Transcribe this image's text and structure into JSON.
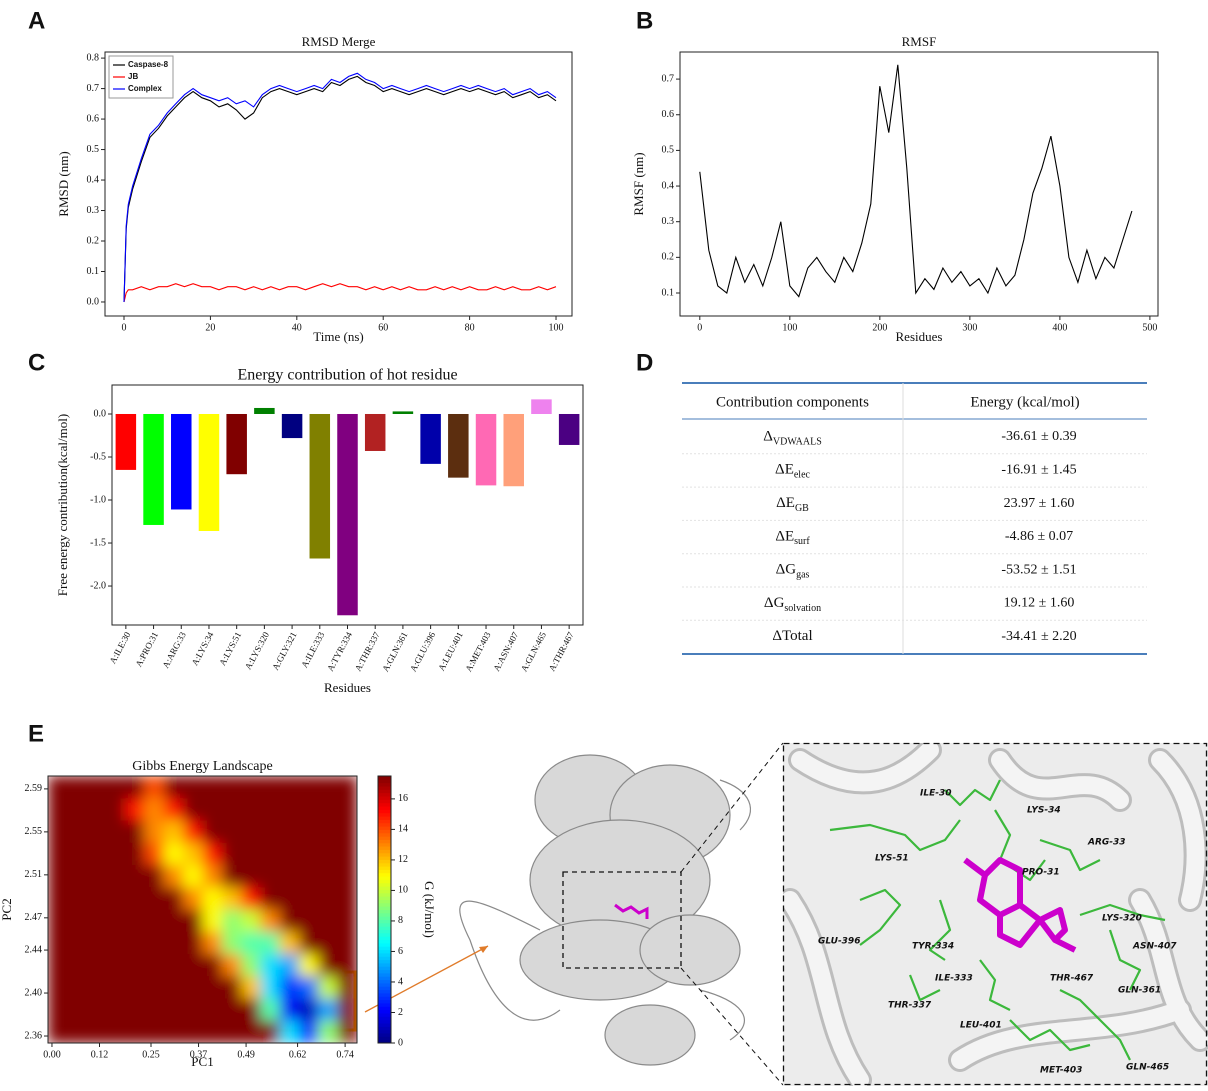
{
  "panels": [
    "A",
    "B",
    "C",
    "D",
    "E"
  ],
  "chart_data": [
    {
      "type": "line",
      "title": "RMSD Merge",
      "xlabel": "Time (ns)",
      "ylabel": "RMSD (nm)",
      "x": [
        0,
        0.5,
        1,
        2,
        4,
        6,
        8,
        10,
        12,
        14,
        16,
        18,
        20,
        22,
        24,
        26,
        28,
        30,
        32,
        34,
        36,
        38,
        40,
        42,
        44,
        46,
        48,
        50,
        52,
        54,
        56,
        58,
        60,
        62,
        64,
        66,
        68,
        70,
        72,
        74,
        76,
        78,
        80,
        82,
        84,
        86,
        88,
        90,
        92,
        94,
        96,
        98,
        100
      ],
      "series": [
        {
          "name": "Caspase-8",
          "color": "#000000",
          "values": [
            0.0,
            0.24,
            0.31,
            0.37,
            0.46,
            0.54,
            0.57,
            0.61,
            0.64,
            0.67,
            0.69,
            0.67,
            0.66,
            0.64,
            0.65,
            0.63,
            0.6,
            0.62,
            0.67,
            0.69,
            0.7,
            0.69,
            0.68,
            0.69,
            0.7,
            0.69,
            0.72,
            0.71,
            0.73,
            0.74,
            0.72,
            0.71,
            0.69,
            0.7,
            0.69,
            0.68,
            0.69,
            0.7,
            0.69,
            0.68,
            0.69,
            0.7,
            0.69,
            0.7,
            0.69,
            0.68,
            0.69,
            0.67,
            0.68,
            0.69,
            0.67,
            0.68,
            0.66
          ]
        },
        {
          "name": "JB",
          "color": "#ff0000",
          "values": [
            0.0,
            0.03,
            0.04,
            0.04,
            0.05,
            0.04,
            0.05,
            0.05,
            0.06,
            0.05,
            0.06,
            0.05,
            0.05,
            0.04,
            0.05,
            0.05,
            0.04,
            0.05,
            0.04,
            0.05,
            0.04,
            0.05,
            0.05,
            0.04,
            0.05,
            0.06,
            0.05,
            0.06,
            0.05,
            0.05,
            0.04,
            0.05,
            0.04,
            0.05,
            0.04,
            0.05,
            0.04,
            0.04,
            0.05,
            0.04,
            0.05,
            0.04,
            0.05,
            0.04,
            0.04,
            0.05,
            0.04,
            0.05,
            0.04,
            0.04,
            0.05,
            0.04,
            0.05
          ]
        },
        {
          "name": "Complex",
          "color": "#0000ff",
          "values": [
            0.0,
            0.25,
            0.32,
            0.38,
            0.47,
            0.55,
            0.58,
            0.62,
            0.65,
            0.68,
            0.7,
            0.68,
            0.67,
            0.66,
            0.67,
            0.65,
            0.66,
            0.64,
            0.68,
            0.7,
            0.71,
            0.7,
            0.69,
            0.7,
            0.71,
            0.7,
            0.73,
            0.72,
            0.74,
            0.75,
            0.73,
            0.72,
            0.7,
            0.71,
            0.7,
            0.69,
            0.7,
            0.71,
            0.7,
            0.69,
            0.7,
            0.71,
            0.7,
            0.71,
            0.7,
            0.69,
            0.7,
            0.68,
            0.69,
            0.7,
            0.68,
            0.69,
            0.67
          ]
        }
      ],
      "legend": "upper left",
      "xlim": [
        -4.4,
        103.7
      ],
      "xticks": [
        0,
        20,
        40,
        60,
        80,
        100
      ],
      "ylim": [
        -0.046,
        0.82
      ],
      "yticks": [
        {
          "value": 0,
          "label": "0.0"
        },
        0.1,
        0.2,
        0.3,
        0.4,
        0.5,
        0.6,
        0.7,
        0.8
      ]
    },
    {
      "type": "line",
      "title": "RMSF",
      "xlabel": "Residues",
      "ylabel": "RMSF (nm)",
      "color": "#000000",
      "x": [
        0,
        10,
        20,
        30,
        40,
        50,
        60,
        70,
        80,
        90,
        100,
        110,
        120,
        130,
        140,
        150,
        160,
        170,
        180,
        190,
        200,
        210,
        220,
        230,
        240,
        250,
        260,
        270,
        280,
        290,
        300,
        310,
        320,
        330,
        340,
        350,
        360,
        370,
        380,
        390,
        400,
        410,
        420,
        430,
        440,
        450,
        460,
        470,
        480
      ],
      "values": [
        0.44,
        0.22,
        0.12,
        0.1,
        0.2,
        0.13,
        0.18,
        0.12,
        0.2,
        0.3,
        0.12,
        0.09,
        0.17,
        0.2,
        0.16,
        0.13,
        0.2,
        0.16,
        0.24,
        0.35,
        0.68,
        0.55,
        0.74,
        0.45,
        0.1,
        0.14,
        0.11,
        0.17,
        0.13,
        0.16,
        0.12,
        0.14,
        0.1,
        0.17,
        0.12,
        0.15,
        0.25,
        0.38,
        0.45,
        0.54,
        0.4,
        0.2,
        0.13,
        0.22,
        0.14,
        0.2,
        0.17,
        0.25,
        0.33
      ],
      "xlim": [
        -22,
        509
      ],
      "xticks": [
        0,
        100,
        200,
        300,
        400,
        500
      ],
      "ylim": [
        0.0355,
        0.776
      ],
      "yticks": [
        0.1,
        0.2,
        0.3,
        0.4,
        0.5,
        0.6,
        0.7
      ]
    },
    {
      "type": "bar",
      "title": "Energy contribution of hot residue",
      "xlabel": "Residues",
      "ylabel": "Free energy contribution(kcal/mol)",
      "categories": [
        "A:ILE:30",
        "A:PRO:31",
        "A:ARG:33",
        "A:LYS:34",
        "A:LYS:51",
        "A:LYS:320",
        "A:GLY:321",
        "A:ILE:333",
        "A:TYR:334",
        "A:THR:337",
        "A:GLN:361",
        "A:GLU:396",
        "A:LEU:401",
        "A:MET:403",
        "A:ASN:407",
        "A:GLN:465",
        "A:THR:467"
      ],
      "values": [
        -0.65,
        -1.29,
        -1.11,
        -1.36,
        -0.7,
        0.07,
        -0.28,
        -1.68,
        -2.34,
        -0.43,
        0.03,
        -0.58,
        -0.74,
        -0.83,
        -0.84,
        0.17,
        -0.36
      ],
      "colors": [
        "#ff0000",
        "#00ff00",
        "#0000ff",
        "#ffff00",
        "#800000",
        "#008000",
        "#000080",
        "#808000",
        "#800080",
        "#b22222",
        "#008000",
        "#0000aa",
        "#5c2e0f",
        "#ff69b4",
        "#ffa07a",
        "#ee82ee",
        "#4b0082"
      ],
      "ylim": [
        -2.453,
        0.337
      ],
      "yticks": [
        {
          "value": 0,
          "label": "0.0"
        },
        -0.5,
        {
          "value": -1,
          "label": "-1.0"
        },
        -1.5,
        {
          "value": -2,
          "label": "-2.0"
        }
      ]
    },
    {
      "type": "heatmap",
      "title": "Gibbs Energy Landscape",
      "xlabel": "PC1",
      "ylabel": "PC2",
      "colorbar_label": "G (kJ/mol)",
      "xlim": [
        -0.01,
        0.77
      ],
      "xticks": [
        {
          "value": 0,
          "label": "0.00"
        },
        0.12,
        0.25,
        0.37,
        0.49,
        0.62,
        0.74
      ],
      "ylim": [
        2.3535,
        2.602
      ],
      "yticks": [
        2.36,
        {
          "value": 2.4,
          "label": "2.40"
        },
        2.44,
        2.47,
        2.51,
        2.55,
        2.59
      ],
      "clim": [
        0,
        17.5
      ],
      "cticks": [
        0,
        2,
        4,
        6,
        8,
        10,
        12,
        14,
        16
      ],
      "colormap": "jet",
      "z": [
        [
          17.5,
          17.5,
          17.5,
          17.5,
          17.5,
          14,
          17.5,
          17.5,
          17.5,
          17.5,
          17.5,
          17.5,
          17.5,
          17.5,
          17.5,
          17.5
        ],
        [
          17.5,
          17.5,
          17.5,
          17.5,
          15,
          13,
          15,
          17.5,
          17.5,
          17.5,
          17.5,
          17.5,
          17.5,
          17.5,
          17.5,
          17.5
        ],
        [
          17.5,
          17.5,
          17.5,
          17.5,
          17.5,
          13,
          12,
          15,
          17.5,
          17.5,
          17.5,
          17.5,
          17.5,
          17.5,
          17.5,
          17.5
        ],
        [
          17.5,
          17.5,
          17.5,
          17.5,
          17.5,
          14,
          11,
          12,
          15,
          17.5,
          17.5,
          17.5,
          17.5,
          17.5,
          17.5,
          17.5
        ],
        [
          17.5,
          17.5,
          17.5,
          17.5,
          17.5,
          17.5,
          13,
          11,
          13,
          17.5,
          17.5,
          17.5,
          17.5,
          17.5,
          17.5,
          17.5
        ],
        [
          17.5,
          17.5,
          17.5,
          17.5,
          17.5,
          17.5,
          17.5,
          13,
          11,
          12,
          15,
          17.5,
          17.5,
          17.5,
          17.5,
          17.5
        ],
        [
          17.5,
          17.5,
          17.5,
          17.5,
          17.5,
          17.5,
          17.5,
          17.5,
          11,
          9,
          10,
          13,
          17.5,
          17.5,
          17.5,
          17.5
        ],
        [
          17.5,
          17.5,
          17.5,
          17.5,
          17.5,
          17.5,
          17.5,
          17.5,
          13,
          9,
          8,
          8,
          12,
          17.5,
          17.5,
          17.5
        ],
        [
          17.5,
          17.5,
          17.5,
          17.5,
          17.5,
          17.5,
          17.5,
          17.5,
          17.5,
          13,
          9,
          6,
          5,
          11,
          17.5,
          17.5
        ],
        [
          17.5,
          17.5,
          17.5,
          17.5,
          17.5,
          17.5,
          17.5,
          17.5,
          17.5,
          17.5,
          12,
          6,
          3,
          4,
          10,
          17.5
        ],
        [
          17.5,
          17.5,
          17.5,
          17.5,
          17.5,
          17.5,
          17.5,
          17.5,
          17.5,
          17.5,
          17.5,
          8,
          2,
          1,
          5,
          17.5
        ],
        [
          17.5,
          17.5,
          17.5,
          17.5,
          17.5,
          17.5,
          17.5,
          17.5,
          17.5,
          17.5,
          17.5,
          17.5,
          6,
          3,
          9,
          17.5
        ]
      ]
    }
  ],
  "table": {
    "header": [
      "Contribution components",
      "Energy (kcal/mol)"
    ],
    "rows": [
      [
        {
          "main": "Δ",
          "sub": "VDWAALS"
        },
        "-36.61 ± 0.39"
      ],
      [
        {
          "main": "ΔE",
          "sub": "elec"
        },
        "-16.91 ± 1.45"
      ],
      [
        {
          "main": "ΔE",
          "sub": "GB"
        },
        "23.97 ± 1.60"
      ],
      [
        {
          "main": "ΔE",
          "sub": "surf"
        },
        "-4.86 ± 0.07"
      ],
      [
        {
          "main": "ΔG",
          "sub": "gas"
        },
        "-53.52 ± 1.51"
      ],
      [
        {
          "main": "ΔG",
          "sub": "solvation"
        },
        "19.12 ± 1.60"
      ],
      [
        {
          "main": "ΔTotal"
        },
        "-34.41 ± 2.20"
      ]
    ]
  },
  "structure_labels": [
    "ILE-30",
    "LYS-34",
    "ARG-33",
    "LYS-51",
    "PRO-31",
    "LYS-320",
    "ASN-407",
    "GLU-396",
    "TYR-334",
    "ILE-333",
    "GLN-361",
    "THR-337",
    "THR-467",
    "LEU-401",
    "MET-403",
    "GLN-465"
  ]
}
